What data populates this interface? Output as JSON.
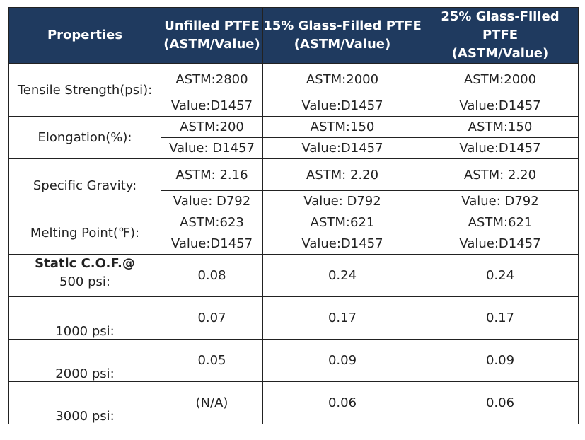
{
  "header": {
    "properties": "Properties",
    "col1_line1": "Unfilled PTFE",
    "col1_line2": "(ASTM/Value)",
    "col2_line1": "15% Glass-Filled PTFE",
    "col2_line2": "(ASTM/Value)",
    "col3_line1": "25% Glass-Filled PTFE",
    "col3_line2": "(ASTM/Value)"
  },
  "tensile": {
    "label": "Tensile Strength(psi):",
    "astm": [
      "ASTM:2800",
      "ASTM:2000",
      "ASTM:2000"
    ],
    "value": [
      "Value:D1457",
      "Value:D1457",
      "Value:D1457"
    ]
  },
  "elongation": {
    "label": "Elongation(%):",
    "astm": [
      "ASTM:200",
      "ASTM:150",
      "ASTM:150"
    ],
    "value": [
      "Value: D1457",
      "Value:D1457",
      "Value:D1457"
    ]
  },
  "gravity": {
    "label": "Specific Gravity:",
    "astm": [
      "ASTM: 2.16",
      "ASTM: 2.20",
      "ASTM: 2.20"
    ],
    "value": [
      "Value: D792",
      "Value: D792",
      "Value: D792"
    ]
  },
  "melting": {
    "label": "Melting Point(℉):",
    "astm": [
      "ASTM:623",
      "ASTM:621",
      "ASTM:621"
    ],
    "value": [
      "Value:D1457",
      "Value:D1457",
      "Value:D1457"
    ]
  },
  "cof": {
    "title": "Static C.O.F.@",
    "rows": [
      {
        "label": "500 psi:",
        "values": [
          "0.08",
          "0.24",
          "0.24"
        ]
      },
      {
        "label": "1000 psi:",
        "values": [
          "0.07",
          "0.17",
          "0.17"
        ]
      },
      {
        "label": "2000 psi:",
        "values": [
          "0.05",
          "0.09",
          "0.09"
        ]
      },
      {
        "label": "3000 psi:",
        "values": [
          "(N/A)",
          "0.06",
          "0.06"
        ]
      }
    ]
  }
}
